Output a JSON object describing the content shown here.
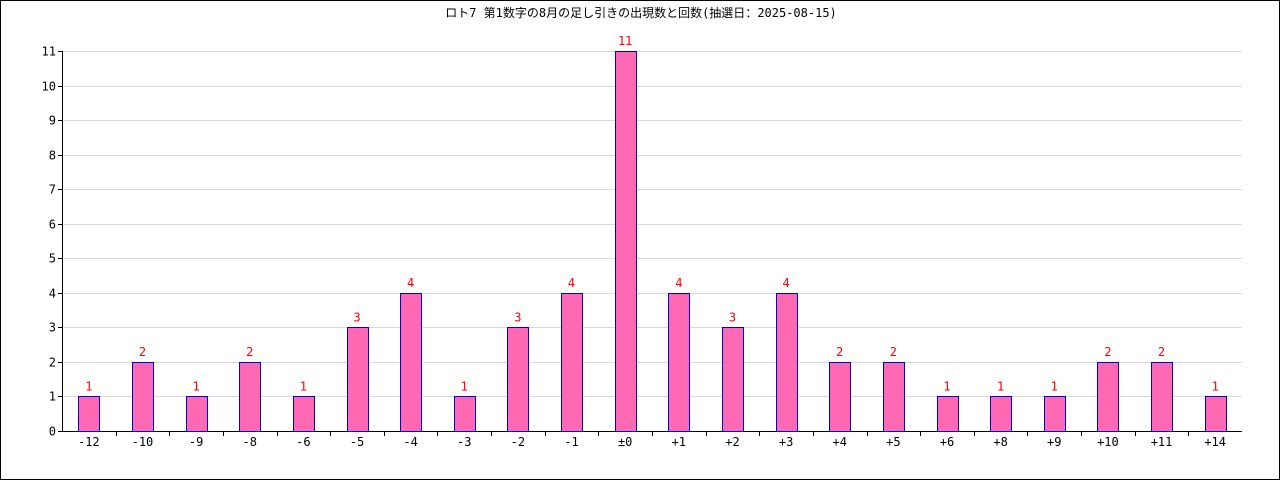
{
  "chart_data": {
    "type": "bar",
    "title": "ロト7 第1数字の8月の足し引きの出現数と回数(抽選日：2025-08-15)",
    "categories": [
      "-12",
      "-10",
      "-9",
      "-8",
      "-6",
      "-5",
      "-4",
      "-3",
      "-2",
      "-1",
      "±0",
      "+1",
      "+2",
      "+3",
      "+4",
      "+5",
      "+6",
      "+8",
      "+9",
      "+10",
      "+11",
      "+14"
    ],
    "values": [
      1,
      2,
      1,
      2,
      1,
      3,
      4,
      1,
      3,
      4,
      11,
      4,
      3,
      4,
      2,
      2,
      1,
      1,
      1,
      2,
      2,
      1
    ],
    "ylim": [
      0,
      11
    ],
    "yticks": [
      0,
      1,
      2,
      3,
      4,
      5,
      6,
      7,
      8,
      9,
      10,
      11
    ],
    "grid": true,
    "bar_color": "#ff69b4",
    "bar_edge_color": "#0000cd",
    "label_color": "#ff0000"
  }
}
